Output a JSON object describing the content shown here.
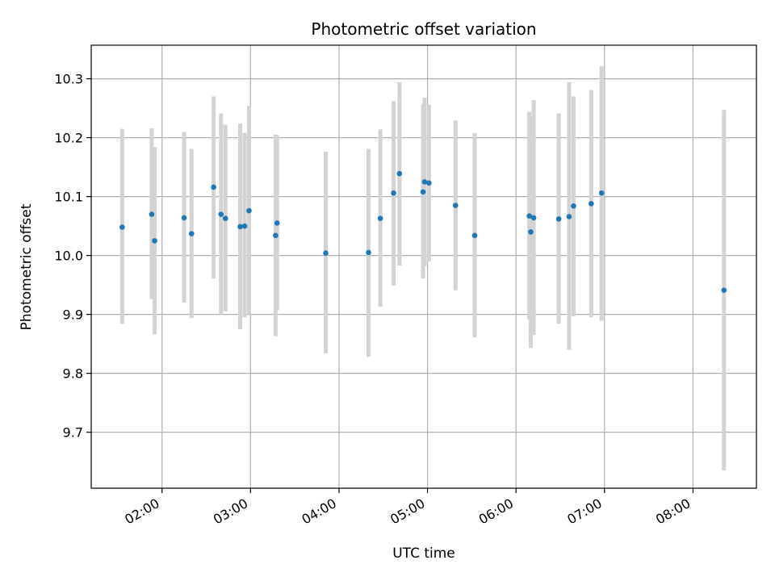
{
  "chart_data": {
    "type": "scatter",
    "title": "Photometric offset variation",
    "xlabel": "UTC time",
    "ylabel": "Photometric offset",
    "x_ticks": [
      "02:00",
      "03:00",
      "04:00",
      "05:00",
      "06:00",
      "07:00",
      "08:00"
    ],
    "y_ticks": [
      "9.7",
      "9.8",
      "9.9",
      "10.0",
      "10.1",
      "10.2",
      "10.3"
    ],
    "xlim": [
      "01:12",
      "08:43"
    ],
    "ylim": [
      9.605,
      10.357
    ],
    "grid": true,
    "colors": {
      "point": "#1f77b4",
      "errorbar": "#d3d3d3",
      "grid": "#b0b0b0"
    },
    "series": [
      {
        "points": [
          {
            "x": "01:33",
            "y": 10.048,
            "ylo": 9.884,
            "yhi": 10.215
          },
          {
            "x": "01:53",
            "y": 10.07,
            "ylo": 9.926,
            "yhi": 10.216
          },
          {
            "x": "01:55",
            "y": 10.025,
            "ylo": 9.866,
            "yhi": 10.184
          },
          {
            "x": "02:15",
            "y": 10.064,
            "ylo": 9.92,
            "yhi": 10.21
          },
          {
            "x": "02:20",
            "y": 10.037,
            "ylo": 9.894,
            "yhi": 10.181
          },
          {
            "x": "02:35",
            "y": 10.116,
            "ylo": 9.961,
            "yhi": 10.27
          },
          {
            "x": "02:40",
            "y": 10.07,
            "ylo": 9.9,
            "yhi": 10.241
          },
          {
            "x": "02:43",
            "y": 10.063,
            "ylo": 9.905,
            "yhi": 10.222
          },
          {
            "x": "02:53",
            "y": 10.049,
            "ylo": 9.875,
            "yhi": 10.224
          },
          {
            "x": "02:56",
            "y": 10.05,
            "ylo": 9.895,
            "yhi": 10.208
          },
          {
            "x": "02:59",
            "y": 10.076,
            "ylo": 9.9,
            "yhi": 10.254
          },
          {
            "x": "03:17",
            "y": 10.034,
            "ylo": 9.863,
            "yhi": 10.205
          },
          {
            "x": "03:18",
            "y": 10.055,
            "ylo": 9.907,
            "yhi": 10.204
          },
          {
            "x": "03:51",
            "y": 10.004,
            "ylo": 9.834,
            "yhi": 10.176
          },
          {
            "x": "04:20",
            "y": 10.005,
            "ylo": 9.828,
            "yhi": 10.181
          },
          {
            "x": "04:28",
            "y": 10.063,
            "ylo": 9.913,
            "yhi": 10.214
          },
          {
            "x": "04:37",
            "y": 10.106,
            "ylo": 9.949,
            "yhi": 10.262
          },
          {
            "x": "04:41",
            "y": 10.139,
            "ylo": 9.983,
            "yhi": 10.294
          },
          {
            "x": "04:57",
            "y": 10.108,
            "ylo": 9.961,
            "yhi": 10.257
          },
          {
            "x": "04:58",
            "y": 10.125,
            "ylo": 9.982,
            "yhi": 10.268
          },
          {
            "x": "05:01",
            "y": 10.123,
            "ylo": 9.99,
            "yhi": 10.256
          },
          {
            "x": "05:19",
            "y": 10.085,
            "ylo": 9.941,
            "yhi": 10.229
          },
          {
            "x": "05:32",
            "y": 10.034,
            "ylo": 9.861,
            "yhi": 10.208
          },
          {
            "x": "06:09",
            "y": 10.067,
            "ylo": 9.892,
            "yhi": 10.244
          },
          {
            "x": "06:10",
            "y": 10.04,
            "ylo": 9.843,
            "yhi": 10.236
          },
          {
            "x": "06:12",
            "y": 10.064,
            "ylo": 9.865,
            "yhi": 10.264
          },
          {
            "x": "06:29",
            "y": 10.062,
            "ylo": 9.884,
            "yhi": 10.241
          },
          {
            "x": "06:36",
            "y": 10.066,
            "ylo": 9.84,
            "yhi": 10.294
          },
          {
            "x": "06:39",
            "y": 10.084,
            "ylo": 9.897,
            "yhi": 10.27
          },
          {
            "x": "06:51",
            "y": 10.088,
            "ylo": 9.895,
            "yhi": 10.281
          },
          {
            "x": "06:58",
            "y": 10.106,
            "ylo": 9.889,
            "yhi": 10.321
          },
          {
            "x": "08:21",
            "y": 9.941,
            "ylo": 9.635,
            "yhi": 10.247
          }
        ]
      }
    ]
  }
}
